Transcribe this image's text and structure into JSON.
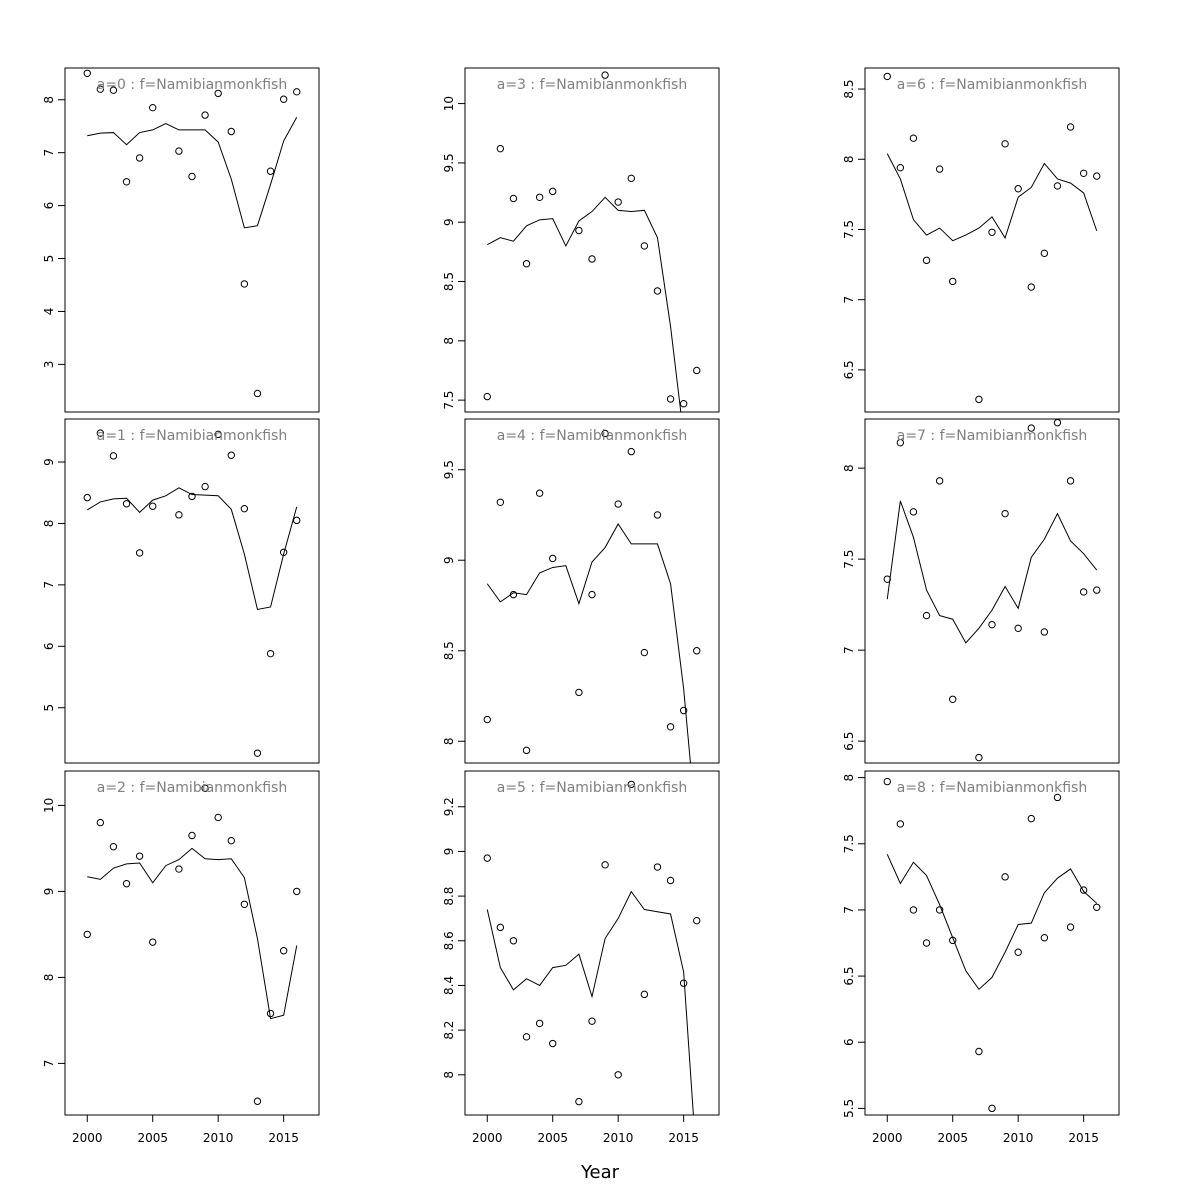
{
  "figure": {
    "xlabel": "Year",
    "x_ticks": [
      "2000",
      "2005",
      "2010",
      "2015"
    ],
    "panel_title_color": "#7f7f7f"
  },
  "chart_data": [
    {
      "type": "line",
      "title": "a=0 : f=Namibianmonkfish",
      "x": [
        2000,
        2001,
        2002,
        2003,
        2004,
        2005,
        2006,
        2007,
        2008,
        2009,
        2010,
        2011,
        2012,
        2013,
        2014,
        2015,
        2016
      ],
      "ylim": [
        2.1,
        8.6
      ],
      "y_ticks": [
        3,
        4,
        5,
        6,
        7,
        8
      ],
      "x_ticks_shown": false,
      "series": [
        {
          "kind": "points",
          "values": [
            8.5,
            8.2,
            8.18,
            6.45,
            6.9,
            7.85,
            null,
            7.03,
            6.55,
            7.71,
            8.12,
            7.4,
            4.52,
            2.45,
            6.65,
            8.01,
            8.15
          ]
        },
        {
          "kind": "line",
          "values": [
            7.32,
            7.37,
            7.38,
            7.15,
            7.38,
            7.43,
            7.55,
            7.43,
            7.43,
            7.43,
            7.2,
            6.5,
            5.58,
            5.62,
            6.4,
            7.22,
            7.67
          ]
        }
      ]
    },
    {
      "type": "line",
      "title": "a=1 : f=Namibianmonkfish",
      "x": [
        2000,
        2001,
        2002,
        2003,
        2004,
        2005,
        2006,
        2007,
        2008,
        2009,
        2010,
        2011,
        2012,
        2013,
        2014,
        2015,
        2016
      ],
      "ylim": [
        4.1,
        9.7
      ],
      "y_ticks": [
        5,
        6,
        7,
        8,
        9
      ],
      "x_ticks_shown": false,
      "series": [
        {
          "kind": "points",
          "values": [
            8.42,
            9.47,
            9.1,
            8.32,
            7.52,
            8.28,
            null,
            8.14,
            8.44,
            8.6,
            9.45,
            9.11,
            8.24,
            4.26,
            5.88,
            7.53,
            8.05
          ]
        },
        {
          "kind": "line",
          "values": [
            8.22,
            8.35,
            8.4,
            8.41,
            8.18,
            8.38,
            8.45,
            8.58,
            8.47,
            8.46,
            8.45,
            8.23,
            7.5,
            6.6,
            6.64,
            7.5,
            8.27
          ]
        }
      ]
    },
    {
      "type": "line",
      "title": "a=2 : f=Namibianmonkfish",
      "x": [
        2000,
        2001,
        2002,
        2003,
        2004,
        2005,
        2006,
        2007,
        2008,
        2009,
        2010,
        2011,
        2012,
        2013,
        2014,
        2015,
        2016
      ],
      "ylim": [
        6.4,
        10.4
      ],
      "y_ticks": [
        7,
        8,
        9,
        10
      ],
      "x_ticks_shown": true,
      "series": [
        {
          "kind": "points",
          "values": [
            8.5,
            9.8,
            9.52,
            9.09,
            9.41,
            8.41,
            null,
            9.26,
            9.65,
            10.2,
            9.86,
            9.59,
            8.85,
            6.56,
            7.58,
            8.31,
            9.0
          ]
        },
        {
          "kind": "line",
          "values": [
            9.17,
            9.14,
            9.27,
            9.32,
            9.33,
            9.1,
            9.3,
            9.37,
            9.5,
            9.38,
            9.37,
            9.38,
            9.16,
            8.45,
            7.52,
            7.56,
            8.37
          ]
        }
      ]
    },
    {
      "type": "line",
      "title": "a=3 : f=Namibianmonkfish",
      "x": [
        2000,
        2001,
        2002,
        2003,
        2004,
        2005,
        2006,
        2007,
        2008,
        2009,
        2010,
        2011,
        2012,
        2013,
        2014,
        2015,
        2016
      ],
      "ylim": [
        7.4,
        10.3
      ],
      "y_ticks": [
        7.5,
        8.0,
        8.5,
        9.0,
        9.5,
        10.0
      ],
      "x_ticks_shown": false,
      "series": [
        {
          "kind": "points",
          "values": [
            7.53,
            9.62,
            9.2,
            8.65,
            9.21,
            9.26,
            null,
            8.93,
            8.69,
            10.24,
            9.17,
            9.37,
            8.8,
            8.42,
            7.51,
            7.47,
            7.75
          ]
        },
        {
          "kind": "line",
          "values": [
            8.81,
            8.87,
            8.84,
            8.97,
            9.02,
            9.03,
            8.8,
            9.01,
            9.09,
            9.21,
            9.1,
            9.09,
            9.1,
            8.87,
            8.12,
            7.2,
            6.7
          ]
        }
      ]
    },
    {
      "type": "line",
      "title": "a=4 : f=Namibianmonkfish",
      "x": [
        2000,
        2001,
        2002,
        2003,
        2004,
        2005,
        2006,
        2007,
        2008,
        2009,
        2010,
        2011,
        2012,
        2013,
        2014,
        2015,
        2016
      ],
      "ylim": [
        7.88,
        9.78
      ],
      "y_ticks": [
        8.0,
        8.5,
        9.0,
        9.5
      ],
      "x_ticks_shown": false,
      "series": [
        {
          "kind": "points",
          "values": [
            8.12,
            9.32,
            8.81,
            7.95,
            9.37,
            9.01,
            null,
            8.27,
            8.81,
            9.7,
            9.31,
            9.6,
            8.49,
            9.25,
            8.08,
            8.17,
            8.5
          ]
        },
        {
          "kind": "line",
          "values": [
            8.87,
            8.77,
            8.82,
            8.81,
            8.93,
            8.96,
            8.97,
            8.76,
            8.99,
            9.07,
            9.2,
            9.09,
            9.09,
            9.09,
            8.87,
            8.29,
            7.5
          ]
        }
      ]
    },
    {
      "type": "line",
      "title": "a=5 : f=Namibianmonkfish",
      "x": [
        2000,
        2001,
        2002,
        2003,
        2004,
        2005,
        2006,
        2007,
        2008,
        2009,
        2010,
        2011,
        2012,
        2013,
        2014,
        2015,
        2016
      ],
      "ylim": [
        7.82,
        9.36
      ],
      "y_ticks": [
        8.0,
        8.2,
        8.4,
        8.6,
        8.8,
        9.0,
        9.2
      ],
      "x_ticks_shown": true,
      "series": [
        {
          "kind": "points",
          "values": [
            8.97,
            8.66,
            8.6,
            8.17,
            8.23,
            8.14,
            null,
            7.88,
            8.24,
            8.94,
            8.0,
            9.3,
            8.36,
            8.93,
            8.87,
            8.41,
            8.69
          ]
        },
        {
          "kind": "line",
          "values": [
            8.74,
            8.48,
            8.38,
            8.43,
            8.4,
            8.48,
            8.49,
            8.54,
            8.35,
            8.61,
            8.7,
            8.82,
            8.74,
            8.73,
            8.72,
            8.46,
            7.6
          ]
        }
      ]
    },
    {
      "type": "line",
      "title": "a=6 : f=Namibianmonkfish",
      "x": [
        2000,
        2001,
        2002,
        2003,
        2004,
        2005,
        2006,
        2007,
        2008,
        2009,
        2010,
        2011,
        2012,
        2013,
        2014,
        2015,
        2016
      ],
      "ylim": [
        6.2,
        8.65
      ],
      "y_ticks": [
        6.5,
        7.0,
        7.5,
        8.0,
        8.5
      ],
      "x_ticks_shown": false,
      "series": [
        {
          "kind": "points",
          "values": [
            8.59,
            7.94,
            8.15,
            7.28,
            7.93,
            7.13,
            null,
            6.29,
            7.48,
            8.11,
            7.79,
            7.09,
            7.33,
            7.81,
            8.23,
            7.9,
            7.88
          ]
        },
        {
          "kind": "line",
          "values": [
            8.04,
            7.86,
            7.57,
            7.46,
            7.51,
            7.42,
            7.46,
            7.51,
            7.59,
            7.44,
            7.73,
            7.8,
            7.97,
            7.86,
            7.83,
            7.76,
            7.49
          ]
        }
      ]
    },
    {
      "type": "line",
      "title": "a=7 : f=Namibianmonkfish",
      "x": [
        2000,
        2001,
        2002,
        2003,
        2004,
        2005,
        2006,
        2007,
        2008,
        2009,
        2010,
        2011,
        2012,
        2013,
        2014,
        2015,
        2016
      ],
      "ylim": [
        6.38,
        8.27
      ],
      "y_ticks": [
        6.5,
        7.0,
        7.5,
        8.0
      ],
      "x_ticks_shown": false,
      "series": [
        {
          "kind": "points",
          "values": [
            7.39,
            8.14,
            7.76,
            7.19,
            7.93,
            6.73,
            null,
            6.41,
            7.14,
            7.75,
            7.12,
            8.22,
            7.1,
            8.25,
            7.93,
            7.32,
            7.33
          ]
        },
        {
          "kind": "line",
          "values": [
            7.28,
            7.82,
            7.62,
            7.33,
            7.19,
            7.17,
            7.04,
            7.12,
            7.22,
            7.35,
            7.23,
            7.51,
            7.61,
            7.75,
            7.6,
            7.53,
            7.44
          ]
        }
      ]
    },
    {
      "type": "line",
      "title": "a=8 : f=Namibianmonkfish",
      "x": [
        2000,
        2001,
        2002,
        2003,
        2004,
        2005,
        2006,
        2007,
        2008,
        2009,
        2010,
        2011,
        2012,
        2013,
        2014,
        2015,
        2016
      ],
      "ylim": [
        5.45,
        8.05
      ],
      "y_ticks": [
        5.5,
        6.0,
        6.5,
        7.0,
        7.5,
        8.0
      ],
      "x_ticks_shown": true,
      "series": [
        {
          "kind": "points",
          "values": [
            7.97,
            7.65,
            7.0,
            6.75,
            7.0,
            6.77,
            null,
            5.93,
            5.5,
            7.25,
            6.68,
            7.69,
            6.79,
            7.85,
            6.87,
            7.15,
            7.02
          ]
        },
        {
          "kind": "line",
          "values": [
            7.42,
            7.2,
            7.36,
            7.26,
            7.04,
            6.79,
            6.54,
            6.4,
            6.49,
            6.68,
            6.89,
            6.9,
            7.13,
            7.24,
            7.31,
            7.14,
            7.05
          ]
        }
      ]
    }
  ]
}
